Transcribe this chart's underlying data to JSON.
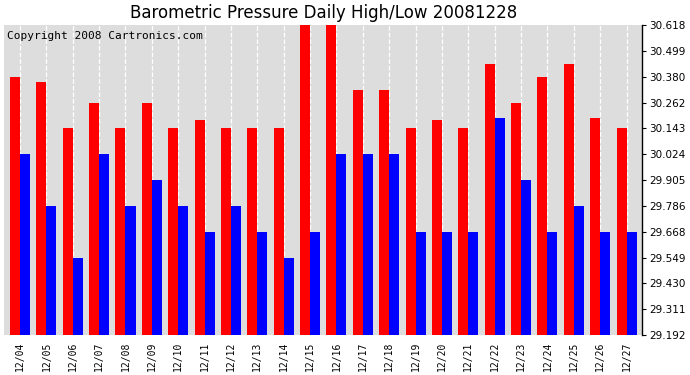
{
  "title": "Barometric Pressure Daily High/Low 20081228",
  "copyright": "Copyright 2008 Cartronics.com",
  "dates": [
    "12/04",
    "12/05",
    "12/06",
    "12/07",
    "12/08",
    "12/09",
    "12/10",
    "12/11",
    "12/12",
    "12/13",
    "12/14",
    "12/15",
    "12/16",
    "12/17",
    "12/18",
    "12/19",
    "12/20",
    "12/21",
    "12/22",
    "12/23",
    "12/24",
    "12/25",
    "12/26",
    "12/27"
  ],
  "highs": [
    30.38,
    30.357,
    30.143,
    30.262,
    30.143,
    30.262,
    30.143,
    30.18,
    30.143,
    30.143,
    30.143,
    30.618,
    30.618,
    30.32,
    30.32,
    30.143,
    30.18,
    30.143,
    30.44,
    30.262,
    30.38,
    30.44,
    30.19,
    30.143
  ],
  "lows": [
    30.024,
    29.786,
    29.549,
    30.024,
    29.786,
    29.905,
    29.786,
    29.668,
    29.786,
    29.668,
    29.549,
    29.668,
    30.024,
    30.024,
    30.024,
    29.668,
    29.668,
    29.668,
    30.19,
    29.905,
    29.668,
    29.786,
    29.668,
    29.668
  ],
  "ymin": 29.192,
  "ymax": 30.618,
  "yticks": [
    29.192,
    29.311,
    29.43,
    29.549,
    29.668,
    29.786,
    29.905,
    30.024,
    30.143,
    30.262,
    30.38,
    30.499,
    30.618
  ],
  "bar_color_high": "#FF0000",
  "bar_color_low": "#0000FF",
  "bg_color": "#FFFFFF",
  "plot_bg_color": "#E8E8E8",
  "grid_color": "#AAAAAA",
  "title_fontsize": 12,
  "copyright_fontsize": 8,
  "bar_width": 0.38
}
